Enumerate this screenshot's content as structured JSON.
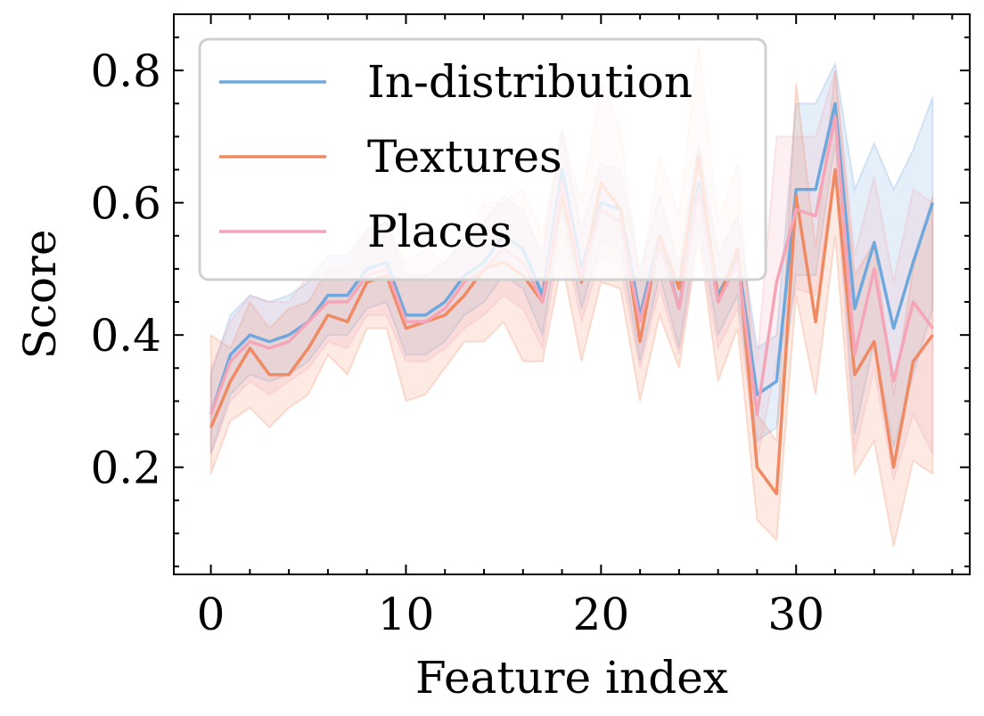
{
  "chart_data": {
    "type": "line",
    "title": "",
    "xlabel": "Feature index",
    "ylabel": "Score",
    "xlim": [
      -1.9,
      38.9
    ],
    "ylim": [
      0.038,
      0.885
    ],
    "xticks": [
      0,
      10,
      20,
      30
    ],
    "xtick_labels": [
      "0",
      "10",
      "20",
      "30"
    ],
    "yticks": [
      0.2,
      0.4,
      0.6,
      0.8
    ],
    "ytick_labels": [
      "0.2",
      "0.4",
      "0.6",
      "0.8"
    ],
    "grid": false,
    "legend_position": "top-left",
    "x": [
      0,
      1,
      2,
      3,
      4,
      5,
      6,
      7,
      8,
      9,
      10,
      11,
      12,
      13,
      14,
      15,
      16,
      17,
      18,
      19,
      20,
      21,
      22,
      23,
      24,
      25,
      26,
      27,
      28,
      29,
      30,
      31,
      32,
      33,
      34,
      35,
      36,
      37
    ],
    "series": [
      {
        "name": "In-distribution",
        "color": "#6fa8dc",
        "values": [
          0.28,
          0.37,
          0.4,
          0.39,
          0.4,
          0.42,
          0.46,
          0.46,
          0.5,
          0.51,
          0.43,
          0.43,
          0.45,
          0.49,
          0.51,
          0.55,
          0.53,
          0.46,
          0.65,
          0.5,
          0.6,
          0.59,
          0.43,
          0.55,
          0.44,
          0.63,
          0.46,
          0.52,
          0.31,
          0.33,
          0.62,
          0.62,
          0.75,
          0.44,
          0.54,
          0.41,
          0.51,
          0.6
        ],
        "lower": [
          0.22,
          0.31,
          0.34,
          0.33,
          0.34,
          0.36,
          0.4,
          0.4,
          0.44,
          0.45,
          0.37,
          0.37,
          0.39,
          0.43,
          0.45,
          0.49,
          0.47,
          0.4,
          0.59,
          0.44,
          0.54,
          0.53,
          0.36,
          0.49,
          0.38,
          0.57,
          0.4,
          0.46,
          0.24,
          0.26,
          0.49,
          0.49,
          0.69,
          0.25,
          0.39,
          0.23,
          0.34,
          0.44
        ],
        "upper": [
          0.34,
          0.43,
          0.46,
          0.45,
          0.46,
          0.48,
          0.52,
          0.52,
          0.56,
          0.57,
          0.49,
          0.49,
          0.51,
          0.55,
          0.57,
          0.61,
          0.59,
          0.52,
          0.71,
          0.56,
          0.66,
          0.65,
          0.5,
          0.61,
          0.5,
          0.69,
          0.52,
          0.58,
          0.38,
          0.4,
          0.75,
          0.75,
          0.81,
          0.62,
          0.69,
          0.62,
          0.68,
          0.76
        ]
      },
      {
        "name": "Textures",
        "color": "#ef8a62",
        "values": [
          0.26,
          0.33,
          0.38,
          0.34,
          0.34,
          0.38,
          0.43,
          0.42,
          0.48,
          0.49,
          0.41,
          0.42,
          0.43,
          0.46,
          0.5,
          0.51,
          0.49,
          0.45,
          0.61,
          0.48,
          0.63,
          0.59,
          0.39,
          0.55,
          0.47,
          0.67,
          0.45,
          0.53,
          0.2,
          0.16,
          0.61,
          0.42,
          0.65,
          0.34,
          0.39,
          0.2,
          0.36,
          0.4
        ],
        "lower": [
          0.19,
          0.27,
          0.29,
          0.26,
          0.29,
          0.31,
          0.37,
          0.34,
          0.41,
          0.41,
          0.3,
          0.31,
          0.35,
          0.39,
          0.39,
          0.42,
          0.36,
          0.36,
          0.51,
          0.36,
          0.48,
          0.47,
          0.3,
          0.43,
          0.35,
          0.55,
          0.33,
          0.41,
          0.12,
          0.09,
          0.46,
          0.31,
          0.55,
          0.19,
          0.24,
          0.08,
          0.21,
          0.19
        ],
        "upper": [
          0.4,
          0.38,
          0.45,
          0.41,
          0.44,
          0.45,
          0.5,
          0.5,
          0.56,
          0.57,
          0.51,
          0.53,
          0.51,
          0.54,
          0.6,
          0.6,
          0.62,
          0.55,
          0.71,
          0.6,
          0.78,
          0.71,
          0.48,
          0.67,
          0.58,
          0.84,
          0.57,
          0.66,
          0.28,
          0.24,
          0.78,
          0.53,
          0.8,
          0.49,
          0.54,
          0.31,
          0.5,
          0.61
        ]
      },
      {
        "name": "Places",
        "color": "#f4a6b8",
        "values": [
          0.28,
          0.36,
          0.39,
          0.38,
          0.39,
          0.42,
          0.45,
          0.45,
          0.49,
          0.5,
          0.42,
          0.42,
          0.44,
          0.48,
          0.5,
          0.53,
          0.51,
          0.45,
          0.63,
          0.49,
          0.59,
          0.57,
          0.42,
          0.54,
          0.44,
          0.62,
          0.45,
          0.51,
          0.28,
          0.48,
          0.59,
          0.58,
          0.73,
          0.37,
          0.5,
          0.33,
          0.45,
          0.41
        ],
        "lower": [
          0.22,
          0.3,
          0.33,
          0.31,
          0.33,
          0.35,
          0.39,
          0.38,
          0.43,
          0.43,
          0.36,
          0.36,
          0.38,
          0.41,
          0.43,
          0.46,
          0.44,
          0.38,
          0.56,
          0.42,
          0.52,
          0.5,
          0.35,
          0.47,
          0.37,
          0.55,
          0.38,
          0.44,
          0.21,
          0.36,
          0.47,
          0.46,
          0.65,
          0.22,
          0.35,
          0.18,
          0.28,
          0.22
        ],
        "upper": [
          0.35,
          0.42,
          0.46,
          0.45,
          0.45,
          0.49,
          0.52,
          0.52,
          0.56,
          0.57,
          0.49,
          0.49,
          0.51,
          0.55,
          0.57,
          0.6,
          0.58,
          0.52,
          0.7,
          0.56,
          0.66,
          0.64,
          0.49,
          0.61,
          0.51,
          0.69,
          0.52,
          0.58,
          0.36,
          0.7,
          0.7,
          0.7,
          0.8,
          0.52,
          0.64,
          0.48,
          0.62,
          0.6
        ]
      }
    ]
  }
}
